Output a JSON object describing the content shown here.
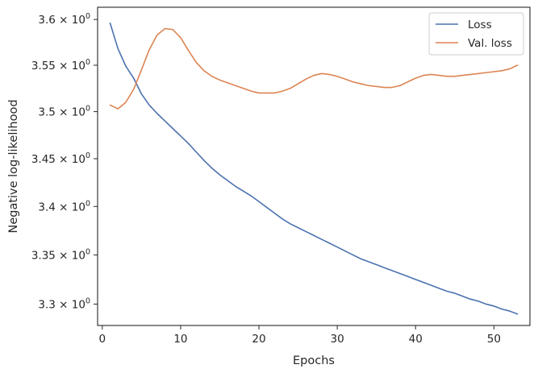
{
  "chart_data": {
    "type": "line",
    "title": "",
    "xlabel": "Epochs",
    "ylabel": "Negative log-likelihood",
    "xlim": [
      -0.6,
      54.6
    ],
    "ylim": [
      3.2785,
      3.6135
    ],
    "y_scale": "log",
    "grid": false,
    "legend_position": "top-right",
    "x_ticks": [
      0,
      10,
      20,
      30,
      40,
      50
    ],
    "x_tick_labels": [
      "0",
      "10",
      "20",
      "30",
      "40",
      "50"
    ],
    "y_ticks": [
      3.3,
      3.35,
      3.4,
      3.45,
      3.5,
      3.55,
      3.6
    ],
    "y_tick_labels": [
      {
        "mantissa": "3.3",
        "base": "10",
        "exponent": "0"
      },
      {
        "mantissa": "3.35",
        "base": "10",
        "exponent": "0"
      },
      {
        "mantissa": "3.4",
        "base": "10",
        "exponent": "0"
      },
      {
        "mantissa": "3.45",
        "base": "10",
        "exponent": "0"
      },
      {
        "mantissa": "3.5",
        "base": "10",
        "exponent": "0"
      },
      {
        "mantissa": "3.55",
        "base": "10",
        "exponent": "0"
      },
      {
        "mantissa": "3.6",
        "base": "10",
        "exponent": "0"
      }
    ],
    "series": [
      {
        "name": "Loss",
        "color": "#4c72b0",
        "x": [
          1,
          2,
          3,
          4,
          5,
          6,
          7,
          8,
          9,
          10,
          11,
          12,
          13,
          14,
          15,
          16,
          17,
          18,
          19,
          20,
          21,
          22,
          23,
          24,
          25,
          26,
          27,
          28,
          29,
          30,
          31,
          32,
          33,
          34,
          35,
          36,
          37,
          38,
          39,
          40,
          41,
          42,
          43,
          44,
          45,
          46,
          47,
          48,
          49,
          50,
          51,
          52,
          53
        ],
        "y": [
          3.596,
          3.568,
          3.549,
          3.536,
          3.519,
          3.507,
          3.498,
          3.49,
          3.482,
          3.474,
          3.466,
          3.457,
          3.448,
          3.44,
          3.433,
          3.427,
          3.421,
          3.416,
          3.411,
          3.405,
          3.399,
          3.393,
          3.387,
          3.382,
          3.378,
          3.374,
          3.37,
          3.366,
          3.362,
          3.358,
          3.354,
          3.35,
          3.346,
          3.343,
          3.34,
          3.337,
          3.334,
          3.331,
          3.328,
          3.325,
          3.322,
          3.319,
          3.316,
          3.313,
          3.311,
          3.308,
          3.305,
          3.303,
          3.3,
          3.298,
          3.295,
          3.293,
          3.29
        ]
      },
      {
        "name": "Val. loss",
        "color": "#dd8452",
        "x": [
          1,
          2,
          3,
          4,
          5,
          6,
          7,
          8,
          9,
          10,
          11,
          12,
          13,
          14,
          15,
          16,
          17,
          18,
          19,
          20,
          21,
          22,
          23,
          24,
          25,
          26,
          27,
          28,
          29,
          30,
          31,
          32,
          33,
          34,
          35,
          36,
          37,
          38,
          39,
          40,
          41,
          42,
          43,
          44,
          45,
          46,
          47,
          48,
          49,
          50,
          51,
          52,
          53
        ],
        "y": [
          3.507,
          3.503,
          3.51,
          3.524,
          3.545,
          3.567,
          3.583,
          3.59,
          3.589,
          3.58,
          3.566,
          3.553,
          3.544,
          3.538,
          3.534,
          3.531,
          3.528,
          3.525,
          3.522,
          3.52,
          3.52,
          3.52,
          3.522,
          3.525,
          3.53,
          3.535,
          3.539,
          3.541,
          3.54,
          3.538,
          3.535,
          3.532,
          3.53,
          3.528,
          3.527,
          3.526,
          3.526,
          3.528,
          3.532,
          3.536,
          3.539,
          3.54,
          3.539,
          3.538,
          3.538,
          3.539,
          3.54,
          3.541,
          3.542,
          3.543,
          3.544,
          3.546,
          3.55
        ]
      }
    ]
  }
}
